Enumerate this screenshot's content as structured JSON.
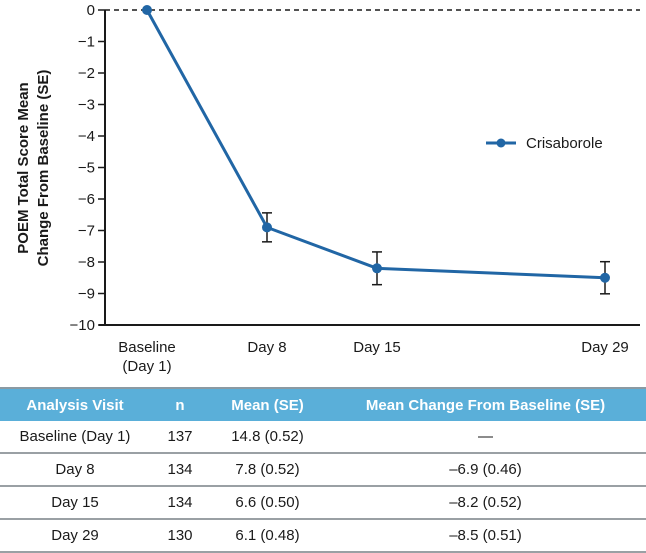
{
  "chart_data": {
    "type": "line",
    "title": "",
    "xlabel": "",
    "ylabel": "POEM Total Score Mean Change From Baseline (SE)",
    "ylabel_lines": [
      "POEM Total Score Mean",
      "Change From Baseline (SE)"
    ],
    "ylim": [
      -10,
      0
    ],
    "yticks": [
      0,
      -1,
      -2,
      -3,
      -4,
      -5,
      -6,
      -7,
      -8,
      -9,
      -10
    ],
    "ytick_labels": [
      "0",
      "−1",
      "−2",
      "−3",
      "−4",
      "−5",
      "−6",
      "−7",
      "−8",
      "−9",
      "−10"
    ],
    "x_days": [
      1,
      8,
      15,
      29
    ],
    "categories": [
      "Baseline (Day 1)",
      "Day 8",
      "Day 15",
      "Day 29"
    ],
    "category_lines": [
      [
        "Baseline",
        "(Day 1)"
      ],
      [
        "Day 8"
      ],
      [
        "Day 15"
      ],
      [
        "Day 29"
      ]
    ],
    "reference_line": {
      "y": 0,
      "style": "dashed"
    },
    "grid": false,
    "legend_position": "right",
    "series": [
      {
        "name": "Crisaborole",
        "color": "#2166a5",
        "values": [
          0,
          -6.9,
          -8.2,
          -8.5
        ],
        "se": [
          null,
          0.46,
          0.52,
          0.51
        ]
      }
    ]
  },
  "table": {
    "header_color": "#5aafd9",
    "columns": [
      "Analysis Visit",
      "n",
      "Mean (SE)",
      "Mean Change From Baseline (SE)"
    ],
    "rows": [
      [
        "Baseline (Day 1)",
        "137",
        "14.8 (0.52)",
        "—"
      ],
      [
        "Day 8",
        "134",
        "7.8 (0.52)",
        "–6.9 (0.46)"
      ],
      [
        "Day 15",
        "134",
        "6.6 (0.50)",
        "–8.2 (0.52)"
      ],
      [
        "Day 29",
        "130",
        "6.1 (0.48)",
        "–8.5 (0.51)"
      ]
    ]
  }
}
